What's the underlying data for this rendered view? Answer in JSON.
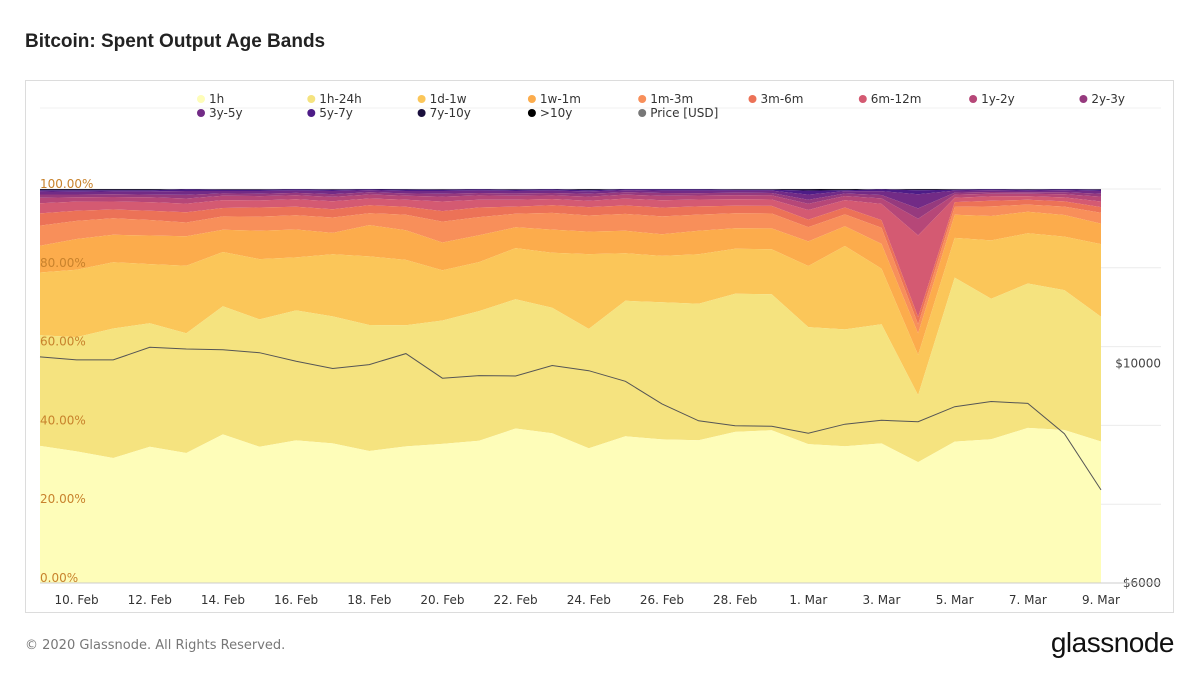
{
  "title": "Bitcoin: Spent Output Age Bands",
  "footer": {
    "copyright": "© 2020 Glassnode. All Rights Reserved.",
    "logo": "glassnode"
  },
  "chart_data": {
    "type": "area",
    "stacked": true,
    "normalized": true,
    "watermark": "glassnode",
    "x": [
      "9. Feb",
      "10. Feb",
      "11. Feb",
      "12. Feb",
      "13. Feb",
      "14. Feb",
      "15. Feb",
      "16. Feb",
      "17. Feb",
      "18. Feb",
      "19. Feb",
      "20. Feb",
      "21. Feb",
      "22. Feb",
      "23. Feb",
      "24. Feb",
      "25. Feb",
      "26. Feb",
      "27. Feb",
      "28. Feb",
      "29. Feb",
      "1. Mar",
      "2. Mar",
      "3. Mar",
      "4. Mar",
      "5. Mar",
      "6. Mar",
      "7. Mar",
      "8. Mar",
      "9. Mar"
    ],
    "x_tick_labels": [
      "10. Feb",
      "12. Feb",
      "14. Feb",
      "16. Feb",
      "18. Feb",
      "20. Feb",
      "22. Feb",
      "24. Feb",
      "26. Feb",
      "28. Feb",
      "1. Mar",
      "3. Mar",
      "5. Mar",
      "7. Mar",
      "9. Mar"
    ],
    "y_left": {
      "label": "",
      "range": [
        0,
        100
      ],
      "ticks": [
        "0.00%",
        "20.00%",
        "40.00%",
        "60.00%",
        "80.00%",
        "100.00%"
      ]
    },
    "y_right": {
      "label": "Price [USD]",
      "scale": "log",
      "range": [
        6000,
        15000
      ],
      "ticks": [
        "$6000",
        "$10000"
      ]
    },
    "series": [
      {
        "name": "1h",
        "color": "#fefdb9",
        "values": [
          34.8,
          33.4,
          31.1,
          34.3,
          33.0,
          37.5,
          34.6,
          36.3,
          35.3,
          33.3,
          34.5,
          34.6,
          35.4,
          38.7,
          37.6,
          33.5,
          36.5,
          35.6,
          35.2,
          36.9,
          38.0,
          35.0,
          33.3,
          32.8,
          30.5,
          35.6,
          33.0,
          38.9,
          38.3,
          35.2
        ]
      },
      {
        "name": "1h-24h",
        "color": "#f5e37f",
        "values": [
          28.1,
          29.0,
          32.2,
          31.1,
          30.4,
          32.3,
          32.3,
          33.1,
          32.1,
          31.8,
          30.6,
          30.7,
          32.3,
          32.4,
          31.5,
          29.7,
          33.7,
          34.0,
          33.6,
          33.7,
          33.8,
          29.5,
          28.5,
          28.0,
          16.9,
          41.3,
          32.3,
          36.2,
          35.0,
          31.0
        ]
      },
      {
        "name": "1d-1w",
        "color": "#fbc659",
        "values": [
          15.9,
          17.1,
          16.5,
          14.9,
          17.1,
          13.7,
          15.3,
          13.5,
          15.7,
          17.3,
          16.5,
          12.5,
          12.2,
          12.8,
          13.8,
          18.6,
          11.8,
          11.5,
          12.2,
          11.0,
          11.2,
          15.4,
          20.3,
          13.1,
          10.2,
          10.0,
          13.4,
          12.6,
          13.4,
          18.1
        ]
      },
      {
        "name": "1w-1m",
        "color": "#fcac4c",
        "values": [
          6.8,
          7.8,
          6.8,
          7.2,
          7.5,
          5.6,
          7.2,
          7.1,
          5.4,
          7.9,
          7.5,
          6.9,
          6.7,
          5.2,
          5.8,
          5.6,
          5.6,
          5.4,
          5.8,
          5.0,
          5.2,
          6.2,
          4.8,
          5.8,
          5.4,
          5.8,
          5.6,
          5.4,
          5.4,
          5.1
        ]
      },
      {
        "name": "1m-3m",
        "color": "#f88f5a",
        "values": [
          5.1,
          4.6,
          4.1,
          3.9,
          3.5,
          3.4,
          3.6,
          3.6,
          3.9,
          3.0,
          3.9,
          5.2,
          4.5,
          3.4,
          4.2,
          4.0,
          4.2,
          4.4,
          4.0,
          3.7,
          3.7,
          3.6,
          2.9,
          3.8,
          2.3,
          2.0,
          2.2,
          1.8,
          2.1,
          2.7
        ]
      },
      {
        "name": "3m-6m",
        "color": "#ec7257",
        "values": [
          3.1,
          2.6,
          2.2,
          2.3,
          2.6,
          2.1,
          2.3,
          2.2,
          2.1,
          2.0,
          2.0,
          2.6,
          2.4,
          1.8,
          1.9,
          2.1,
          2.1,
          2.2,
          2.0,
          1.8,
          1.9,
          1.9,
          1.7,
          1.8,
          1.8,
          1.2,
          1.3,
          1.2,
          1.3,
          1.4
        ]
      },
      {
        "name": "6m-12m",
        "color": "#d45a72",
        "values": [
          2.6,
          2.3,
          2.0,
          2.2,
          2.2,
          2.0,
          1.8,
          1.9,
          2.0,
          1.7,
          1.8,
          2.4,
          1.9,
          1.7,
          1.6,
          1.6,
          1.7,
          1.8,
          1.7,
          1.6,
          1.6,
          2.4,
          1.8,
          3.8,
          20.6,
          1.1,
          1.0,
          0.9,
          1.0,
          1.4
        ]
      },
      {
        "name": "1y-2y",
        "color": "#b64778",
        "values": [
          1.4,
          1.1,
          1.1,
          1.2,
          1.3,
          1.1,
          1.1,
          1.0,
          1.1,
          1.0,
          1.0,
          1.2,
          1.1,
          1.0,
          0.9,
          1.0,
          1.0,
          1.1,
          1.0,
          1.0,
          1.0,
          1.6,
          1.0,
          1.3,
          4.2,
          0.8,
          0.6,
          0.6,
          0.8,
          1.2
        ]
      },
      {
        "name": "2y-3y",
        "color": "#963a7e",
        "values": [
          0.8,
          0.7,
          0.7,
          0.7,
          0.9,
          0.6,
          0.6,
          0.6,
          0.7,
          0.6,
          0.6,
          0.7,
          0.6,
          0.6,
          0.6,
          0.7,
          0.6,
          0.7,
          0.6,
          0.6,
          0.6,
          1.0,
          0.6,
          0.8,
          2.6,
          0.5,
          0.4,
          0.4,
          0.5,
          0.7
        ]
      },
      {
        "name": "3y-5y",
        "color": "#722b86",
        "values": [
          0.8,
          0.7,
          0.7,
          0.8,
          1.0,
          0.6,
          0.7,
          0.6,
          0.8,
          0.5,
          0.6,
          0.7,
          0.6,
          0.6,
          0.6,
          0.6,
          0.5,
          0.6,
          0.6,
          0.5,
          0.6,
          1.3,
          0.6,
          0.9,
          3.6,
          0.5,
          0.4,
          0.4,
          0.5,
          0.7
        ]
      },
      {
        "name": "5y-7y",
        "color": "#4d1c87",
        "values": [
          0.3,
          0.4,
          0.3,
          0.3,
          0.4,
          0.3,
          0.3,
          0.3,
          0.3,
          0.2,
          0.3,
          0.3,
          0.3,
          0.3,
          0.3,
          0.3,
          0.2,
          0.3,
          0.3,
          0.2,
          0.2,
          1.0,
          0.2,
          0.4,
          1.0,
          0.2,
          0.2,
          0.2,
          0.2,
          0.3
        ]
      },
      {
        "name": "7y-10y",
        "color": "#1a0f3c",
        "values": [
          0.2,
          0.2,
          0.2,
          0.2,
          0.1,
          0.1,
          0.1,
          0.1,
          0.1,
          0.1,
          0.2,
          0.1,
          0.1,
          0.1,
          0.1,
          0.2,
          0.1,
          0.1,
          0.1,
          0.1,
          0.1,
          0.3,
          0.1,
          0.1,
          0.2,
          0.1,
          0.1,
          0.1,
          0.1,
          0.1
        ]
      },
      {
        "name": ">10y",
        "color": "#000000",
        "values": [
          0.1,
          0.1,
          0.1,
          0.1,
          0.0,
          0.1,
          0.1,
          0.0,
          0.1,
          0.0,
          0.0,
          0.1,
          0.0,
          0.1,
          0.0,
          0.1,
          0.0,
          0.0,
          0.0,
          0.1,
          0.1,
          0.1,
          0.2,
          0.0,
          0.1,
          0.1,
          0.0,
          0.1,
          0.0,
          0.1
        ]
      }
    ],
    "price_series": {
      "name": "Price [USD]",
      "color": "#777777",
      "values": [
        10150,
        10080,
        10080,
        10380,
        10340,
        10320,
        10250,
        10050,
        9880,
        9970,
        10230,
        9660,
        9720,
        9710,
        9950,
        9830,
        9590,
        9100,
        8750,
        8650,
        8640,
        8500,
        8680,
        8760,
        8730,
        9040,
        9150,
        9110,
        8490,
        7450
      ]
    },
    "legend_position": "top"
  }
}
